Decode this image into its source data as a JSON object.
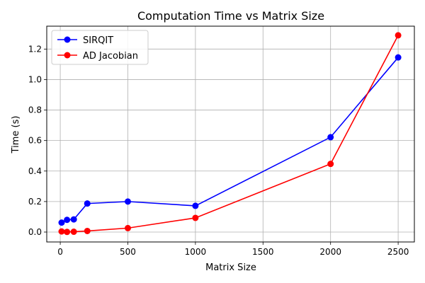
{
  "chart_data": {
    "type": "line",
    "title": "Computation Time vs Matrix Size",
    "xlabel": "Matrix Size",
    "ylabel": "Time (s)",
    "xlim": [
      -100,
      2620
    ],
    "ylim": [
      -0.065,
      1.35
    ],
    "xticks": [
      0,
      500,
      1000,
      1500,
      2000,
      2500
    ],
    "xtick_labels": [
      "0",
      "500",
      "1000",
      "1500",
      "2000",
      "2500"
    ],
    "yticks": [
      0.0,
      0.2,
      0.4,
      0.6,
      0.8,
      1.0,
      1.2
    ],
    "ytick_labels": [
      "0.0",
      "0.2",
      "0.4",
      "0.6",
      "0.8",
      "1.0",
      "1.2"
    ],
    "grid": true,
    "legend_position": "top-left",
    "series": [
      {
        "name": "SIRQIT",
        "color": "#0000ff",
        "marker": "circle",
        "x": [
          10,
          50,
          100,
          200,
          500,
          1000,
          2000,
          2500
        ],
        "y": [
          0.062,
          0.08,
          0.083,
          0.187,
          0.2,
          0.172,
          0.622,
          1.145
        ]
      },
      {
        "name": "AD Jacobian",
        "color": "#ff0000",
        "marker": "circle",
        "x": [
          10,
          50,
          100,
          200,
          500,
          1000,
          2000,
          2500
        ],
        "y": [
          0.004,
          0.001,
          0.002,
          0.007,
          0.026,
          0.093,
          0.447,
          1.29
        ]
      }
    ]
  }
}
